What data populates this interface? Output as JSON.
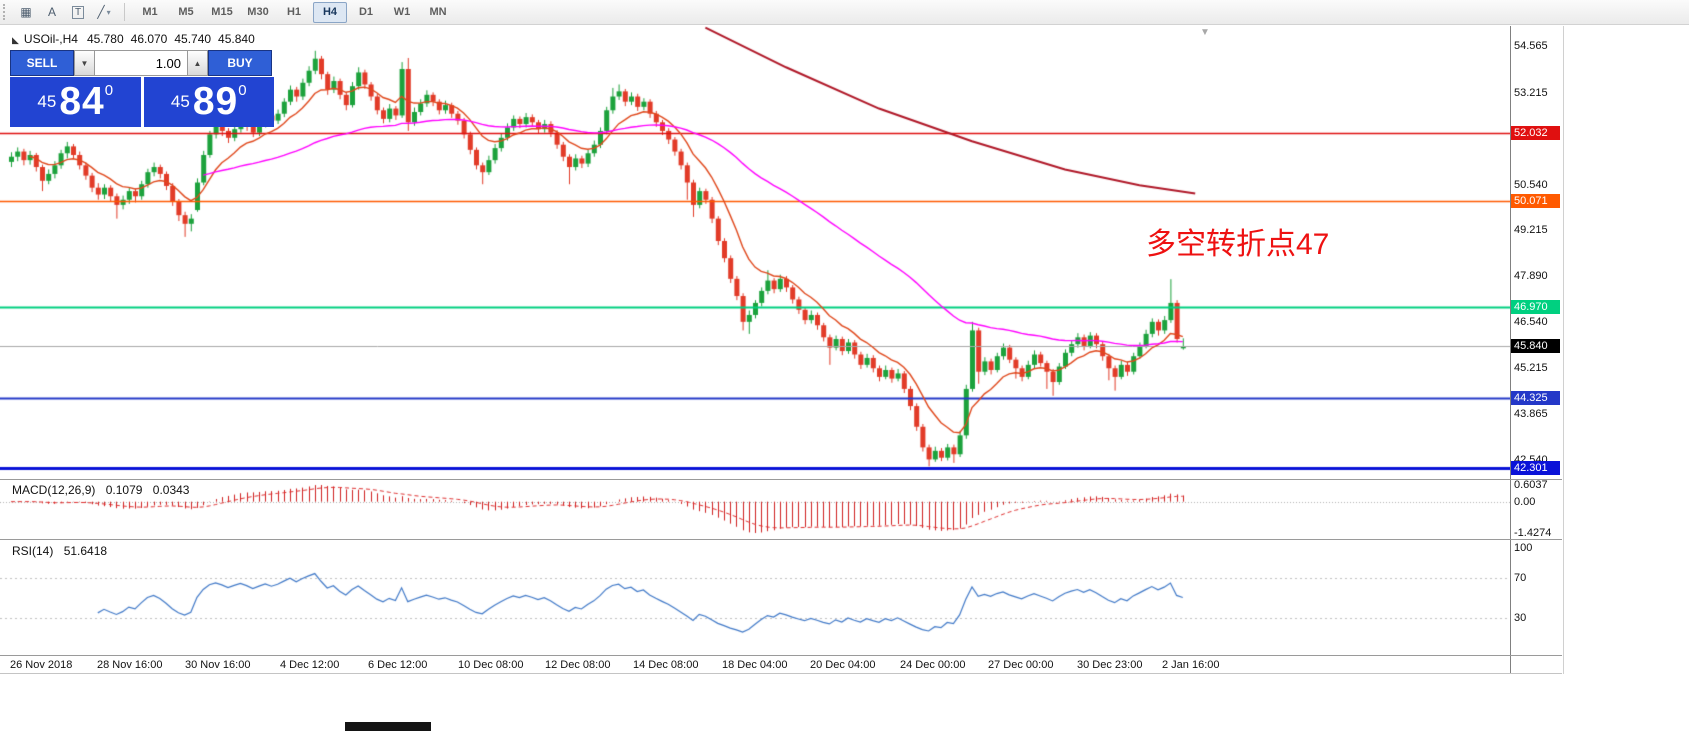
{
  "colors": {
    "one_click_button": "#2f5fd6",
    "one_click_panel": "#2244d2",
    "annotation_red": "#ee1111",
    "up_green": "#1ca23c",
    "down_red": "#e23b28"
  },
  "toolbar": {
    "tools": [
      {
        "name": "grid-icon",
        "glyph": "▦"
      },
      {
        "name": "text-tool-icon",
        "glyph": "A"
      },
      {
        "name": "text-label-tool-icon",
        "glyph": "T",
        "boxed": true
      },
      {
        "name": "trendline-tool-icon",
        "glyph": "╱",
        "dropdown_glyph": "▾"
      }
    ],
    "timeframes": [
      "M1",
      "M5",
      "M15",
      "M30",
      "H1",
      "H4",
      "D1",
      "W1",
      "MN"
    ],
    "active_timeframe": "H4"
  },
  "symbol_header": {
    "icon_glyph": "◣",
    "title": "USOil-,H4",
    "open": "45.780",
    "high": "46.070",
    "low": "45.740",
    "close": "45.840"
  },
  "one_click": {
    "sell_label": "SELL",
    "buy_label": "BUY",
    "volume": "1.00",
    "down_glyph": "▼",
    "up_glyph": "▲",
    "sell_price": {
      "small": "45",
      "big": "84",
      "sup": "0"
    },
    "buy_price": {
      "small": "45",
      "big": "89",
      "sup": "0"
    }
  },
  "annotation": {
    "text": "多空转折点47",
    "color": "#ee1111"
  },
  "chart_shift_glyph": "▼",
  "macd_panel": {
    "label": "MACD(12,26,9)",
    "value_main": "0.1079",
    "value_signal": "0.0343",
    "axis_max": "0.6037",
    "axis_zero": "0.00",
    "axis_min": "-1.4274"
  },
  "rsi_panel": {
    "label": "RSI(14)",
    "value": "51.6418",
    "axis_levels": [
      100,
      70,
      30
    ]
  },
  "chart_data": {
    "type": "candlestick",
    "symbol": "USOil-",
    "timeframe": "H4",
    "price_axis": {
      "min": 42.01,
      "max": 55.15,
      "ticks": [
        54.565,
        53.215,
        50.54,
        49.215,
        47.89,
        46.54,
        45.215,
        43.865,
        42.54
      ]
    },
    "levels": [
      {
        "price": 52.032,
        "color": "#e01010",
        "lw": 1.5
      },
      {
        "price": 50.071,
        "color": "#ff5a00",
        "lw": 1.5
      },
      {
        "price": 46.97,
        "color": "#00d080",
        "lw": 2
      },
      {
        "price": 44.325,
        "color": "#2438c8",
        "lw": 2
      },
      {
        "price": 42.301,
        "color": "#0a12d8",
        "lw": 3
      }
    ],
    "current_price": {
      "price": 45.84,
      "line_color": "#a8a8a8",
      "badge_bg": "#000000"
    },
    "up_color": "#1ca23c",
    "down_color": "#e23b28",
    "overlays": {
      "ma_fast": {
        "type": "ema",
        "period": 10,
        "color": "#e0481c"
      },
      "ma_slow": {
        "type": "ema",
        "period": 55,
        "color": "#ff00ff"
      },
      "ma_long": {
        "color": "#b01828",
        "points": [
          [
            112,
            55.1
          ],
          [
            125,
            53.95
          ],
          [
            140,
            52.75
          ],
          [
            155,
            51.8
          ],
          [
            170,
            50.98
          ],
          [
            182,
            50.52
          ],
          [
            191,
            50.28
          ]
        ]
      }
    },
    "macd": {
      "fast": 12,
      "slow": 26,
      "signal": 9,
      "hist_color": "#d02020",
      "signal_color": "#e03030"
    },
    "rsi": {
      "period": 14,
      "color": "#4079c8",
      "levels": [
        70,
        30
      ]
    },
    "time_labels": [
      [
        "26 Nov 2018",
        10
      ],
      [
        "28 Nov 16:00",
        97
      ],
      [
        "30 Nov 16:00",
        185
      ],
      [
        "4 Dec 12:00",
        280
      ],
      [
        "6 Dec 12:00",
        368
      ],
      [
        "10 Dec 08:00",
        458
      ],
      [
        "12 Dec 08:00",
        545
      ],
      [
        "14 Dec 08:00",
        633
      ],
      [
        "18 Dec 04:00",
        722
      ],
      [
        "20 Dec 04:00",
        810
      ],
      [
        "24 Dec 00:00",
        900
      ],
      [
        "27 Dec 00:00",
        988
      ],
      [
        "30 Dec 23:00",
        1077
      ],
      [
        "2 Jan 16:00",
        1162
      ]
    ],
    "candles": [
      [
        51.2,
        51.48,
        51.05,
        51.35
      ],
      [
        51.35,
        51.62,
        51.22,
        51.5
      ],
      [
        51.5,
        51.58,
        51.1,
        51.25
      ],
      [
        51.25,
        51.52,
        51.12,
        51.4
      ],
      [
        51.4,
        51.46,
        50.92,
        51.05
      ],
      [
        51.05,
        51.12,
        50.35,
        50.65
      ],
      [
        50.65,
        50.98,
        50.55,
        50.85
      ],
      [
        50.85,
        51.22,
        50.72,
        51.1
      ],
      [
        51.1,
        51.55,
        51.0,
        51.45
      ],
      [
        51.45,
        51.78,
        51.3,
        51.65
      ],
      [
        51.65,
        51.72,
        51.28,
        51.4
      ],
      [
        51.4,
        51.5,
        50.98,
        51.1
      ],
      [
        51.1,
        51.18,
        50.68,
        50.8
      ],
      [
        50.8,
        50.88,
        50.32,
        50.45
      ],
      [
        50.45,
        50.58,
        50.1,
        50.25
      ],
      [
        50.25,
        50.55,
        50.12,
        50.45
      ],
      [
        50.45,
        50.52,
        50.05,
        50.2
      ],
      [
        50.2,
        50.28,
        49.55,
        49.95
      ],
      [
        49.95,
        50.22,
        49.82,
        50.1
      ],
      [
        50.1,
        50.45,
        49.98,
        50.35
      ],
      [
        50.35,
        50.42,
        50.02,
        50.2
      ],
      [
        50.2,
        50.65,
        50.1,
        50.55
      ],
      [
        50.55,
        51.0,
        50.45,
        50.9
      ],
      [
        50.9,
        51.18,
        50.78,
        51.05
      ],
      [
        51.05,
        51.12,
        50.72,
        50.85
      ],
      [
        50.85,
        50.92,
        50.38,
        50.5
      ],
      [
        50.5,
        50.58,
        49.92,
        50.05
      ],
      [
        50.05,
        50.12,
        49.48,
        49.65
      ],
      [
        49.65,
        49.75,
        49.02,
        49.4
      ],
      [
        49.4,
        49.68,
        49.18,
        49.55
      ],
      [
        49.8,
        50.72,
        49.75,
        50.6
      ],
      [
        50.6,
        51.52,
        50.52,
        51.4
      ],
      [
        51.4,
        52.1,
        51.32,
        52.0
      ],
      [
        52.0,
        52.38,
        51.88,
        52.25
      ],
      [
        52.25,
        52.32,
        51.95,
        52.1
      ],
      [
        52.1,
        52.18,
        51.75,
        51.9
      ],
      [
        51.9,
        52.25,
        51.8,
        52.15
      ],
      [
        52.15,
        52.52,
        52.05,
        52.4
      ],
      [
        52.4,
        52.48,
        52.1,
        52.25
      ],
      [
        52.25,
        52.32,
        51.92,
        52.05
      ],
      [
        52.05,
        52.4,
        51.95,
        52.3
      ],
      [
        52.3,
        52.65,
        52.2,
        52.55
      ],
      [
        52.55,
        52.62,
        52.25,
        52.4
      ],
      [
        52.4,
        52.72,
        52.3,
        52.6
      ],
      [
        52.6,
        53.05,
        52.5,
        52.95
      ],
      [
        52.95,
        53.42,
        52.85,
        53.3
      ],
      [
        53.3,
        53.38,
        52.95,
        53.1
      ],
      [
        53.1,
        53.62,
        53.0,
        53.5
      ],
      [
        53.5,
        53.98,
        53.4,
        53.85
      ],
      [
        53.85,
        54.43,
        53.75,
        54.2
      ],
      [
        54.2,
        54.28,
        53.6,
        53.75
      ],
      [
        53.75,
        53.82,
        53.15,
        53.3
      ],
      [
        53.3,
        53.68,
        53.2,
        53.55
      ],
      [
        53.55,
        53.62,
        53.02,
        53.15
      ],
      [
        53.15,
        53.22,
        52.7,
        52.85
      ],
      [
        52.85,
        53.52,
        52.78,
        53.4
      ],
      [
        53.4,
        53.95,
        53.3,
        53.8
      ],
      [
        53.8,
        53.88,
        53.32,
        53.45
      ],
      [
        53.45,
        53.52,
        52.98,
        53.1
      ],
      [
        53.1,
        53.18,
        52.58,
        52.7
      ],
      [
        52.7,
        52.78,
        52.32,
        52.45
      ],
      [
        52.45,
        52.88,
        52.35,
        52.75
      ],
      [
        52.75,
        52.82,
        52.42,
        52.55
      ],
      [
        52.55,
        54.1,
        52.48,
        53.9
      ],
      [
        53.9,
        54.22,
        52.1,
        52.35
      ],
      [
        52.35,
        52.78,
        52.25,
        52.65
      ],
      [
        52.65,
        53.02,
        52.55,
        52.9
      ],
      [
        52.9,
        53.28,
        52.8,
        53.15
      ],
      [
        53.15,
        53.22,
        52.82,
        52.95
      ],
      [
        52.95,
        53.02,
        52.58,
        52.7
      ],
      [
        52.7,
        52.98,
        52.6,
        52.85
      ],
      [
        52.85,
        52.92,
        52.48,
        52.6
      ],
      [
        52.6,
        52.68,
        52.28,
        52.4
      ],
      [
        52.4,
        52.48,
        51.88,
        52.0
      ],
      [
        52.0,
        52.08,
        51.42,
        51.55
      ],
      [
        51.55,
        51.62,
        50.98,
        51.1
      ],
      [
        51.1,
        51.18,
        50.55,
        50.9
      ],
      [
        50.9,
        51.38,
        50.82,
        51.25
      ],
      [
        51.25,
        51.72,
        51.15,
        51.6
      ],
      [
        51.6,
        52.02,
        51.5,
        51.9
      ],
      [
        51.9,
        52.32,
        51.82,
        52.2
      ],
      [
        52.2,
        52.55,
        52.1,
        52.45
      ],
      [
        52.45,
        52.52,
        52.18,
        52.3
      ],
      [
        52.3,
        52.62,
        52.2,
        52.5
      ],
      [
        52.5,
        52.58,
        52.22,
        52.35
      ],
      [
        52.35,
        52.42,
        52.02,
        52.15
      ],
      [
        52.15,
        52.42,
        52.05,
        52.3
      ],
      [
        52.3,
        52.38,
        51.92,
        52.05
      ],
      [
        52.05,
        52.12,
        51.58,
        51.7
      ],
      [
        51.7,
        51.78,
        51.22,
        51.35
      ],
      [
        51.35,
        51.42,
        50.55,
        51.05
      ],
      [
        51.05,
        51.42,
        50.95,
        51.3
      ],
      [
        51.3,
        51.38,
        51.02,
        51.15
      ],
      [
        51.15,
        51.55,
        51.05,
        51.45
      ],
      [
        51.45,
        51.82,
        51.35,
        51.7
      ],
      [
        51.7,
        52.2,
        51.6,
        52.1
      ],
      [
        52.1,
        52.8,
        52.0,
        52.7
      ],
      [
        52.7,
        53.35,
        52.6,
        53.1
      ],
      [
        53.1,
        53.45,
        53.0,
        53.25
      ],
      [
        53.25,
        53.32,
        52.82,
        52.95
      ],
      [
        52.95,
        53.22,
        52.85,
        53.1
      ],
      [
        53.1,
        53.18,
        52.68,
        52.8
      ],
      [
        52.8,
        53.05,
        52.7,
        52.95
      ],
      [
        52.95,
        53.02,
        52.48,
        52.6
      ],
      [
        52.6,
        52.68,
        52.22,
        52.35
      ],
      [
        52.35,
        52.42,
        51.98,
        52.1
      ],
      [
        52.1,
        52.18,
        51.72,
        51.85
      ],
      [
        51.85,
        51.92,
        51.38,
        51.5
      ],
      [
        51.5,
        51.58,
        50.98,
        51.1
      ],
      [
        51.1,
        51.18,
        50.1,
        50.6
      ],
      [
        50.6,
        50.68,
        49.6,
        49.95
      ],
      [
        49.95,
        50.45,
        49.85,
        50.35
      ],
      [
        50.35,
        50.42,
        49.98,
        50.1
      ],
      [
        50.1,
        50.18,
        49.42,
        49.55
      ],
      [
        49.55,
        49.62,
        48.78,
        48.9
      ],
      [
        48.9,
        48.98,
        48.28,
        48.4
      ],
      [
        48.4,
        48.48,
        47.68,
        47.8
      ],
      [
        47.8,
        47.88,
        47.18,
        47.3
      ],
      [
        47.3,
        47.38,
        46.3,
        46.55
      ],
      [
        46.55,
        46.88,
        46.2,
        46.75
      ],
      [
        46.75,
        47.18,
        46.65,
        47.1
      ],
      [
        47.1,
        47.55,
        47.0,
        47.45
      ],
      [
        47.45,
        48.05,
        47.35,
        47.75
      ],
      [
        47.75,
        47.82,
        47.38,
        47.5
      ],
      [
        47.5,
        47.92,
        47.42,
        47.8
      ],
      [
        47.8,
        47.88,
        47.42,
        47.55
      ],
      [
        47.55,
        47.62,
        47.08,
        47.2
      ],
      [
        47.2,
        47.28,
        46.78,
        46.9
      ],
      [
        46.9,
        46.98,
        46.48,
        46.6
      ],
      [
        46.6,
        46.88,
        46.5,
        46.75
      ],
      [
        46.75,
        46.82,
        46.32,
        46.45
      ],
      [
        46.45,
        46.52,
        45.98,
        46.1
      ],
      [
        46.1,
        46.18,
        45.3,
        45.8
      ],
      [
        45.8,
        46.15,
        45.72,
        46.05
      ],
      [
        46.05,
        46.12,
        45.58,
        45.7
      ],
      [
        45.7,
        46.05,
        45.62,
        45.95
      ],
      [
        45.95,
        46.02,
        45.48,
        45.6
      ],
      [
        45.6,
        45.68,
        45.18,
        45.3
      ],
      [
        45.3,
        45.62,
        45.22,
        45.5
      ],
      [
        45.5,
        45.58,
        45.08,
        45.2
      ],
      [
        45.2,
        45.28,
        44.82,
        44.95
      ],
      [
        44.95,
        45.28,
        44.88,
        45.15
      ],
      [
        45.15,
        45.22,
        44.78,
        44.9
      ],
      [
        44.9,
        45.18,
        44.82,
        45.05
      ],
      [
        45.05,
        45.12,
        44.48,
        44.6
      ],
      [
        44.6,
        44.68,
        43.98,
        44.1
      ],
      [
        44.1,
        44.18,
        43.38,
        43.5
      ],
      [
        43.5,
        43.58,
        42.78,
        42.9
      ],
      [
        42.9,
        42.98,
        42.35,
        42.55
      ],
      [
        42.55,
        42.92,
        42.48,
        42.8
      ],
      [
        42.8,
        42.88,
        42.5,
        42.6
      ],
      [
        42.6,
        43.0,
        42.52,
        42.9
      ],
      [
        42.9,
        42.98,
        42.45,
        42.7
      ],
      [
        42.7,
        43.38,
        42.62,
        43.25
      ],
      [
        43.25,
        44.72,
        43.15,
        44.6
      ],
      [
        44.6,
        46.55,
        44.52,
        46.3
      ],
      [
        46.3,
        46.38,
        44.75,
        45.1
      ],
      [
        45.1,
        45.52,
        45.0,
        45.4
      ],
      [
        45.4,
        45.48,
        45.02,
        45.15
      ],
      [
        45.15,
        45.65,
        45.08,
        45.55
      ],
      [
        45.55,
        45.92,
        45.45,
        45.8
      ],
      [
        45.8,
        45.88,
        45.35,
        45.45
      ],
      [
        45.45,
        45.52,
        44.9,
        45.2
      ],
      [
        45.2,
        45.28,
        44.82,
        44.95
      ],
      [
        44.95,
        45.42,
        44.88,
        45.3
      ],
      [
        45.3,
        45.72,
        45.2,
        45.6
      ],
      [
        45.6,
        45.68,
        45.25,
        45.35
      ],
      [
        45.35,
        45.42,
        44.6,
        45.1
      ],
      [
        45.1,
        45.18,
        44.4,
        44.8
      ],
      [
        44.8,
        45.35,
        44.72,
        45.25
      ],
      [
        45.25,
        45.75,
        45.18,
        45.65
      ],
      [
        45.65,
        46.0,
        45.55,
        45.9
      ],
      [
        45.9,
        46.22,
        45.8,
        46.1
      ],
      [
        46.1,
        46.18,
        45.72,
        45.85
      ],
      [
        45.85,
        46.25,
        45.78,
        46.15
      ],
      [
        46.15,
        46.22,
        45.78,
        45.9
      ],
      [
        45.9,
        45.98,
        45.42,
        45.55
      ],
      [
        45.55,
        45.62,
        44.85,
        45.2
      ],
      [
        45.2,
        45.28,
        44.55,
        44.95
      ],
      [
        44.95,
        45.42,
        44.88,
        45.3
      ],
      [
        45.3,
        45.38,
        44.98,
        45.1
      ],
      [
        45.1,
        45.65,
        45.02,
        45.55
      ],
      [
        45.55,
        45.95,
        45.48,
        45.85
      ],
      [
        45.85,
        46.32,
        45.78,
        46.2
      ],
      [
        46.2,
        46.65,
        46.1,
        46.55
      ],
      [
        46.55,
        46.62,
        46.15,
        46.3
      ],
      [
        46.3,
        46.72,
        46.2,
        46.6
      ],
      [
        46.6,
        47.79,
        46.52,
        47.1
      ],
      [
        47.1,
        47.18,
        45.95,
        46.05
      ],
      [
        45.78,
        46.07,
        45.74,
        45.84
      ]
    ]
  }
}
